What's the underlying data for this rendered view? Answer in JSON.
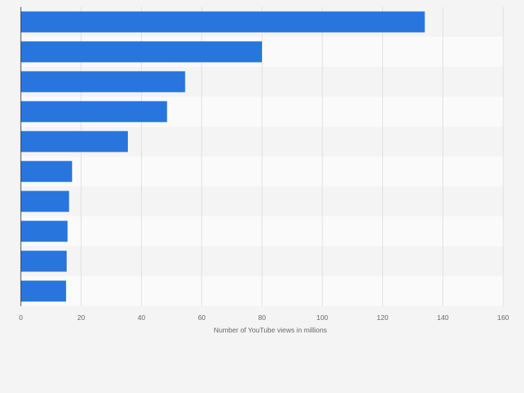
{
  "chart_data": {
    "type": "bar",
    "orientation": "horizontal",
    "categories": [
      "",
      "",
      "",
      "",
      "",
      "",
      "",
      "",
      "",
      ""
    ],
    "values": [
      134,
      80,
      54.5,
      48.5,
      35.5,
      17,
      16,
      15.5,
      15.2,
      15
    ],
    "title": "",
    "xlabel": "Number of YouTube views in millions",
    "ylabel": "",
    "xlim": [
      0,
      160
    ],
    "ticks": [
      0,
      20,
      40,
      60,
      80,
      100,
      120,
      140,
      160
    ],
    "tick_labels": [
      "0",
      "20",
      "40",
      "60",
      "80",
      "100",
      "120",
      "140",
      "160"
    ],
    "grid": true,
    "legend": "none",
    "colors": {
      "bar": "#2876dd",
      "background": "#f4f4f4",
      "band_light": "#fafafa",
      "band_dark": "#f4f4f4",
      "grid": "#dcdcdc",
      "axis": "#333333",
      "text": "#666666"
    }
  }
}
